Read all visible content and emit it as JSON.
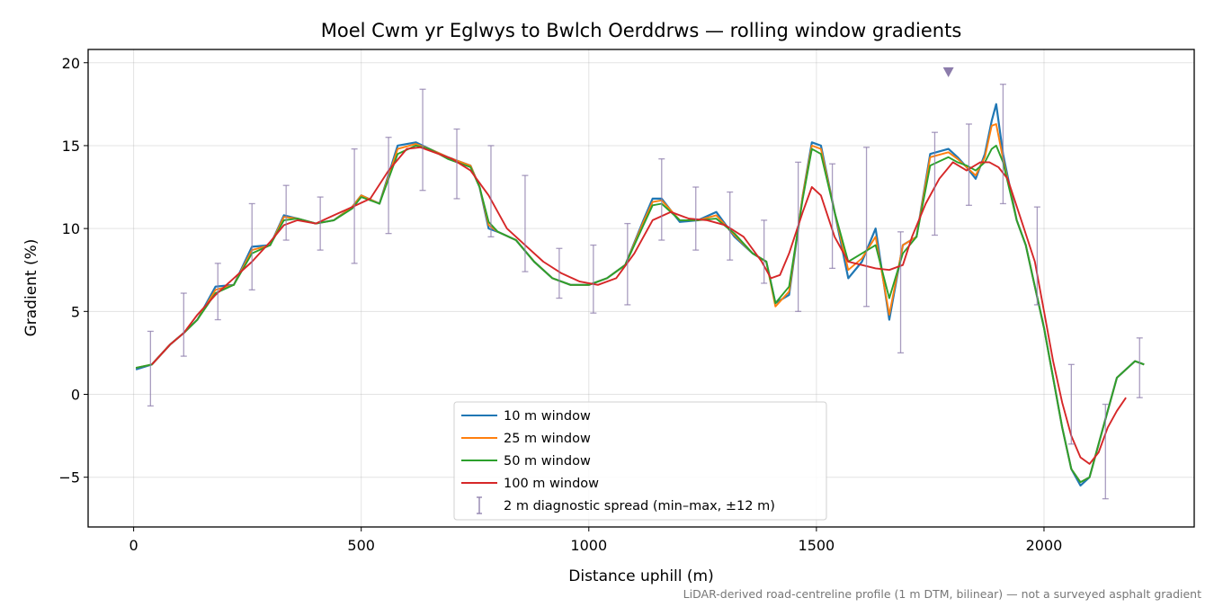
{
  "chart_data": {
    "type": "line",
    "title": "Moel Cwm yr Eglwys to Bwlch Oerddrws — rolling window gradients",
    "xlabel": "Distance uphill (m)",
    "ylabel": "Gradient (%)",
    "xlim": [
      -100,
      2330
    ],
    "ylim": [
      -8,
      20.8
    ],
    "x_ticks": [
      0,
      500,
      1000,
      1500,
      2000
    ],
    "y_ticks": [
      -5,
      0,
      5,
      10,
      15,
      20
    ],
    "y_tick_labels": [
      "−5",
      "0",
      "5",
      "10",
      "15",
      "20"
    ],
    "grid": true,
    "legend_position": "lower-center",
    "footnote": "LiDAR-derived road-centreline profile (1 m DTM, bilinear) — not a surveyed asphalt gradient",
    "peak_marker": {
      "x": 1790,
      "y": 19.4,
      "color": "#8c7cab"
    },
    "series": [
      {
        "name": "10 m window",
        "color": "#1f77b4",
        "x": [
          5,
          40,
          80,
          110,
          140,
          180,
          220,
          260,
          300,
          330,
          360,
          400,
          440,
          480,
          500,
          540,
          580,
          620,
          650,
          690,
          740,
          760,
          780,
          800,
          840,
          880,
          920,
          960,
          1000,
          1040,
          1080,
          1120,
          1140,
          1160,
          1200,
          1240,
          1280,
          1320,
          1360,
          1390,
          1410,
          1440,
          1470,
          1490,
          1510,
          1540,
          1570,
          1600,
          1630,
          1660,
          1690,
          1720,
          1750,
          1790,
          1810,
          1830,
          1850,
          1870,
          1885,
          1895,
          1910,
          1940,
          1960,
          1980,
          2000,
          2020,
          2040,
          2060,
          2080,
          2100,
          2120,
          2140,
          2160,
          2180,
          2200,
          2220
        ],
        "y": [
          1.5,
          1.8,
          3.0,
          3.7,
          4.5,
          6.5,
          6.6,
          8.9,
          9.0,
          10.8,
          10.6,
          10.3,
          10.5,
          11.3,
          12.0,
          11.5,
          15.0,
          15.2,
          14.8,
          14.3,
          13.8,
          12.5,
          10.0,
          9.8,
          9.3,
          8.0,
          7.0,
          6.6,
          6.6,
          7.0,
          7.8,
          10.5,
          11.8,
          11.8,
          10.4,
          10.5,
          11.0,
          9.5,
          8.5,
          8.0,
          5.5,
          6.0,
          12.0,
          15.2,
          15.0,
          11.0,
          7.0,
          8.0,
          10.0,
          4.5,
          9.0,
          9.5,
          14.5,
          14.8,
          14.3,
          13.7,
          13.0,
          14.5,
          16.5,
          17.5,
          14.5,
          10.5,
          9.0,
          6.5,
          4.0,
          1.0,
          -2.0,
          -4.5,
          -5.5,
          -5.0,
          -3.0,
          -1.0,
          1.0,
          1.5,
          2.0,
          1.8
        ]
      },
      {
        "name": "25 m window",
        "color": "#ff7f0e",
        "x": [
          5,
          40,
          80,
          110,
          140,
          180,
          220,
          260,
          300,
          330,
          360,
          400,
          440,
          480,
          500,
          540,
          580,
          620,
          650,
          690,
          740,
          760,
          780,
          800,
          840,
          880,
          920,
          960,
          1000,
          1040,
          1080,
          1120,
          1140,
          1160,
          1200,
          1240,
          1280,
          1320,
          1360,
          1390,
          1410,
          1440,
          1470,
          1490,
          1510,
          1540,
          1570,
          1600,
          1630,
          1660,
          1690,
          1720,
          1750,
          1790,
          1810,
          1830,
          1850,
          1870,
          1885,
          1895,
          1910,
          1940,
          1960,
          1980,
          2000,
          2020,
          2040,
          2060,
          2080,
          2100,
          2120,
          2140,
          2160,
          2180,
          2200,
          2220
        ],
        "y": [
          1.6,
          1.8,
          3.0,
          3.7,
          4.5,
          6.3,
          6.6,
          8.7,
          9.0,
          10.7,
          10.6,
          10.3,
          10.5,
          11.3,
          12.0,
          11.5,
          14.8,
          15.1,
          14.8,
          14.3,
          13.8,
          12.5,
          10.2,
          9.8,
          9.3,
          8.0,
          7.0,
          6.6,
          6.6,
          7.0,
          7.8,
          10.4,
          11.6,
          11.7,
          10.5,
          10.5,
          10.8,
          9.6,
          8.5,
          8.0,
          5.3,
          6.2,
          12.0,
          15.0,
          14.8,
          11.0,
          7.5,
          8.2,
          9.5,
          4.8,
          9.0,
          9.5,
          14.3,
          14.6,
          14.2,
          13.7,
          13.2,
          14.3,
          16.2,
          16.3,
          14.2,
          10.5,
          9.0,
          6.5,
          4.0,
          1.0,
          -2.0,
          -4.5,
          -5.3,
          -5.0,
          -3.0,
          -1.0,
          1.0,
          1.5,
          2.0,
          1.8
        ]
      },
      {
        "name": "50 m window",
        "color": "#2ca02c",
        "x": [
          5,
          40,
          80,
          110,
          140,
          180,
          220,
          260,
          300,
          330,
          360,
          400,
          440,
          480,
          500,
          540,
          580,
          620,
          650,
          690,
          740,
          760,
          780,
          800,
          840,
          880,
          920,
          960,
          1000,
          1040,
          1080,
          1120,
          1140,
          1160,
          1200,
          1240,
          1280,
          1320,
          1360,
          1390,
          1410,
          1440,
          1470,
          1490,
          1510,
          1540,
          1570,
          1600,
          1630,
          1660,
          1690,
          1720,
          1750,
          1790,
          1810,
          1830,
          1850,
          1870,
          1885,
          1895,
          1910,
          1940,
          1960,
          1980,
          2000,
          2020,
          2040,
          2060,
          2080,
          2100,
          2120,
          2140,
          2160,
          2180,
          2200,
          2220
        ],
        "y": [
          1.6,
          1.8,
          3.0,
          3.7,
          4.5,
          6.1,
          6.6,
          8.5,
          9.0,
          10.5,
          10.6,
          10.3,
          10.5,
          11.2,
          11.9,
          11.5,
          14.5,
          15.0,
          14.8,
          14.2,
          13.7,
          12.5,
          10.4,
          9.8,
          9.3,
          8.0,
          7.0,
          6.6,
          6.6,
          7.0,
          7.8,
          10.2,
          11.4,
          11.5,
          10.5,
          10.5,
          10.6,
          9.7,
          8.5,
          8.0,
          5.5,
          6.5,
          11.8,
          14.8,
          14.5,
          11.0,
          8.0,
          8.5,
          9.0,
          5.8,
          8.5,
          9.5,
          13.8,
          14.3,
          14.0,
          13.8,
          13.5,
          14.0,
          14.8,
          15.0,
          14.0,
          10.5,
          9.0,
          6.5,
          4.0,
          1.0,
          -2.0,
          -4.5,
          -5.3,
          -5.0,
          -3.0,
          -1.0,
          1.0,
          1.5,
          2.0,
          1.8
        ]
      },
      {
        "name": "100 m window",
        "color": "#d62728",
        "x": [
          40,
          80,
          110,
          140,
          180,
          220,
          260,
          300,
          330,
          360,
          400,
          440,
          480,
          520,
          560,
          600,
          630,
          660,
          700,
          740,
          780,
          820,
          860,
          900,
          940,
          980,
          1020,
          1060,
          1100,
          1140,
          1180,
          1220,
          1260,
          1300,
          1340,
          1380,
          1400,
          1420,
          1440,
          1470,
          1490,
          1510,
          1540,
          1570,
          1600,
          1630,
          1660,
          1690,
          1710,
          1740,
          1770,
          1800,
          1830,
          1860,
          1880,
          1900,
          1920,
          1950,
          1980,
          2000,
          2020,
          2040,
          2060,
          2080,
          2100,
          2120,
          2140,
          2160,
          2180
        ],
        "y": [
          1.8,
          3.0,
          3.7,
          4.8,
          6.0,
          7.0,
          8.0,
          9.2,
          10.2,
          10.5,
          10.3,
          10.8,
          11.3,
          11.8,
          13.5,
          14.8,
          14.9,
          14.6,
          14.2,
          13.5,
          12.0,
          10.0,
          9.0,
          8.0,
          7.3,
          6.8,
          6.6,
          7.0,
          8.5,
          10.5,
          11.0,
          10.6,
          10.5,
          10.2,
          9.5,
          8.0,
          7.0,
          7.2,
          8.5,
          11.0,
          12.5,
          12.0,
          9.5,
          8.0,
          7.8,
          7.6,
          7.5,
          7.8,
          9.5,
          11.5,
          13.0,
          14.0,
          13.5,
          14.0,
          14.0,
          13.7,
          13.0,
          10.5,
          8.0,
          5.0,
          2.0,
          -0.5,
          -2.5,
          -3.8,
          -4.2,
          -3.5,
          -2.0,
          -1.0,
          -0.2
        ]
      }
    ],
    "error_bars": {
      "name": "2 m diagnostic spread (min–max, ±12 m)",
      "color": "#8c7cab",
      "x": [
        37,
        110,
        185,
        260,
        335,
        410,
        485,
        560,
        635,
        710,
        785,
        860,
        935,
        1010,
        1085,
        1160,
        1235,
        1310,
        1385,
        1460,
        1535,
        1610,
        1685,
        1760,
        1835,
        1910,
        1985,
        2060,
        2135,
        2210
      ],
      "low": [
        -0.7,
        2.3,
        4.5,
        6.3,
        9.3,
        8.7,
        7.9,
        9.7,
        12.3,
        11.8,
        9.5,
        7.4,
        5.8,
        4.9,
        5.4,
        9.3,
        8.7,
        8.1,
        6.7,
        5.0,
        7.6,
        5.3,
        2.5,
        9.6,
        11.4,
        11.5,
        5.4,
        -3.0,
        -6.3,
        -0.2
      ],
      "high": [
        3.8,
        6.1,
        7.9,
        11.5,
        12.6,
        11.9,
        14.8,
        15.5,
        18.4,
        16.0,
        15.0,
        13.2,
        8.8,
        9.0,
        10.3,
        14.2,
        12.5,
        12.2,
        10.5,
        14.0,
        13.9,
        14.9,
        9.8,
        15.8,
        16.3,
        18.7,
        11.3,
        1.8,
        -0.6,
        3.4
      ]
    }
  }
}
